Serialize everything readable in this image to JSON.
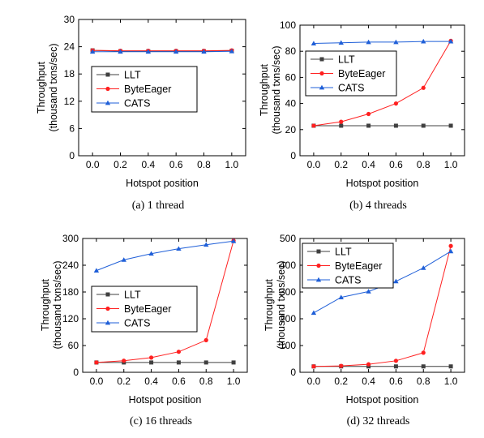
{
  "chart_data": [
    {
      "type": "line",
      "caption": "(a) 1 thread",
      "xlabel": "Hotspot position",
      "ylabel": [
        "Throughput",
        "(thousand txns/sec)"
      ],
      "x": [
        0.0,
        0.2,
        0.4,
        0.6,
        0.8,
        1.0
      ],
      "xlim": [
        -0.1,
        1.1
      ],
      "ylim": [
        0,
        30
      ],
      "yticks": [
        0,
        6,
        12,
        18,
        24,
        30
      ],
      "legend_position": "center-left",
      "series": [
        {
          "name": "LLT",
          "values": [
            23.2,
            23.0,
            23.0,
            23.0,
            23.0,
            23.1
          ],
          "color": "#404040",
          "marker": "square"
        },
        {
          "name": "ByteEager",
          "values": [
            23.2,
            23.1,
            23.1,
            23.1,
            23.1,
            23.2
          ],
          "color": "#ff2020",
          "marker": "circle"
        },
        {
          "name": "CATS",
          "values": [
            22.9,
            22.9,
            22.9,
            22.9,
            22.9,
            23.0
          ],
          "color": "#1f5fd8",
          "marker": "triangle"
        }
      ]
    },
    {
      "type": "line",
      "caption": "(b) 4 threads",
      "xlabel": "Hotspot position",
      "ylabel": [
        "Throughput",
        "(thousand txns/sec)"
      ],
      "x": [
        0.0,
        0.2,
        0.4,
        0.6,
        0.8,
        1.0
      ],
      "xlim": [
        -0.1,
        1.1
      ],
      "ylim": [
        0,
        100
      ],
      "yticks": [
        0,
        20,
        40,
        60,
        80,
        100
      ],
      "legend_position": "upper-left",
      "series": [
        {
          "name": "LLT",
          "values": [
            23,
            23,
            23,
            23,
            23,
            23
          ],
          "color": "#404040",
          "marker": "square"
        },
        {
          "name": "ByteEager",
          "values": [
            23,
            26,
            32,
            40,
            52,
            88
          ],
          "color": "#ff2020",
          "marker": "circle"
        },
        {
          "name": "CATS",
          "values": [
            86,
            86.5,
            87,
            87,
            87.5,
            87.5
          ],
          "color": "#1f5fd8",
          "marker": "triangle"
        }
      ]
    },
    {
      "type": "line",
      "caption": "(c) 16 threads",
      "xlabel": "Hotspot position",
      "ylabel": [
        "Throughput",
        "(thousand txns/sec)"
      ],
      "x": [
        0.0,
        0.2,
        0.4,
        0.6,
        0.8,
        1.0
      ],
      "xlim": [
        -0.1,
        1.1
      ],
      "ylim": [
        0,
        300
      ],
      "yticks": [
        0,
        60,
        120,
        180,
        240,
        300
      ],
      "legend_position": "center-left",
      "series": [
        {
          "name": "LLT",
          "values": [
            22,
            22,
            22,
            22,
            22,
            22
          ],
          "color": "#404040",
          "marker": "square"
        },
        {
          "name": "ByteEager",
          "values": [
            22,
            26,
            33,
            46,
            72,
            295
          ],
          "color": "#ff2020",
          "marker": "circle"
        },
        {
          "name": "CATS",
          "values": [
            228,
            252,
            266,
            277,
            286,
            294
          ],
          "color": "#1f5fd8",
          "marker": "triangle"
        }
      ]
    },
    {
      "type": "line",
      "caption": "(d) 32 threads",
      "xlabel": "Hotspot position",
      "ylabel": [
        "Throughput",
        "(thousand txns/sec)"
      ],
      "x": [
        0.0,
        0.2,
        0.4,
        0.6,
        0.8,
        1.0
      ],
      "xlim": [
        -0.1,
        1.1
      ],
      "ylim": [
        0,
        500
      ],
      "yticks": [
        0,
        100,
        200,
        300,
        400,
        500
      ],
      "legend_position": "upper-left",
      "series": [
        {
          "name": "LLT",
          "values": [
            22,
            22,
            22,
            22,
            22,
            22
          ],
          "color": "#404040",
          "marker": "square"
        },
        {
          "name": "ByteEager",
          "values": [
            22,
            24,
            30,
            43,
            73,
            472
          ],
          "color": "#ff2020",
          "marker": "circle"
        },
        {
          "name": "CATS",
          "values": [
            222,
            280,
            302,
            340,
            390,
            452
          ],
          "color": "#1f5fd8",
          "marker": "triangle"
        }
      ]
    }
  ]
}
